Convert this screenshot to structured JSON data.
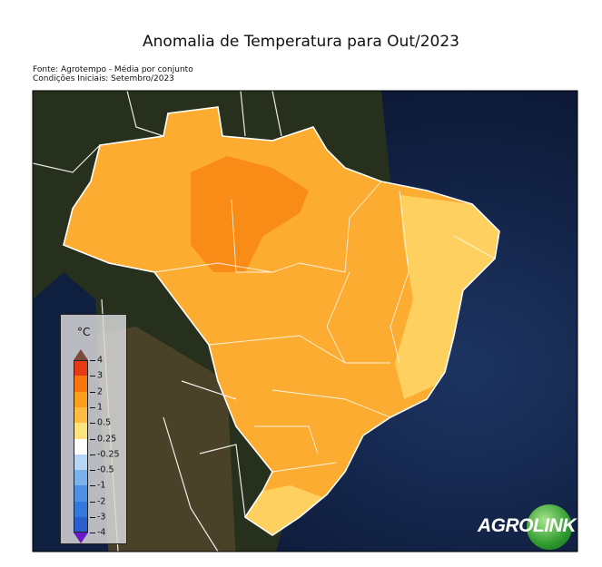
{
  "title": "Anomalia de Temperatura para Out/2023",
  "subtitle_lines": [
    "Fonte: Agrotempo - Média por conjunto",
    "Condições Iniciais: Setembro/2023"
  ],
  "legend": {
    "unit": "°C",
    "ticks": [
      "4",
      "3",
      "2",
      "1",
      "0.5",
      "0.25",
      "-0.25",
      "-0.5",
      "-1",
      "-2",
      "-3",
      "-4"
    ],
    "bin_colors": [
      "#e43a16",
      "#f7740f",
      "#fb9d1d",
      "#fdbb44",
      "#fee27d",
      "#ffffff",
      "#b6d6f6",
      "#7bb2ee",
      "#4d8fe4",
      "#3478dc",
      "#2a5fcf"
    ],
    "extend_max_color": "#7a4b3c",
    "extend_min_color": "#6a18c8"
  },
  "map_colors": {
    "anomaly_1_2": "#fcac30",
    "anomaly_2_3": "#f98c16",
    "anomaly_0_5_1": "#fdd060",
    "ocean": "#0d1c3a",
    "land": "#2a2c1c"
  },
  "logo": {
    "text_left": "AGRO",
    "text_right": "LINK"
  }
}
